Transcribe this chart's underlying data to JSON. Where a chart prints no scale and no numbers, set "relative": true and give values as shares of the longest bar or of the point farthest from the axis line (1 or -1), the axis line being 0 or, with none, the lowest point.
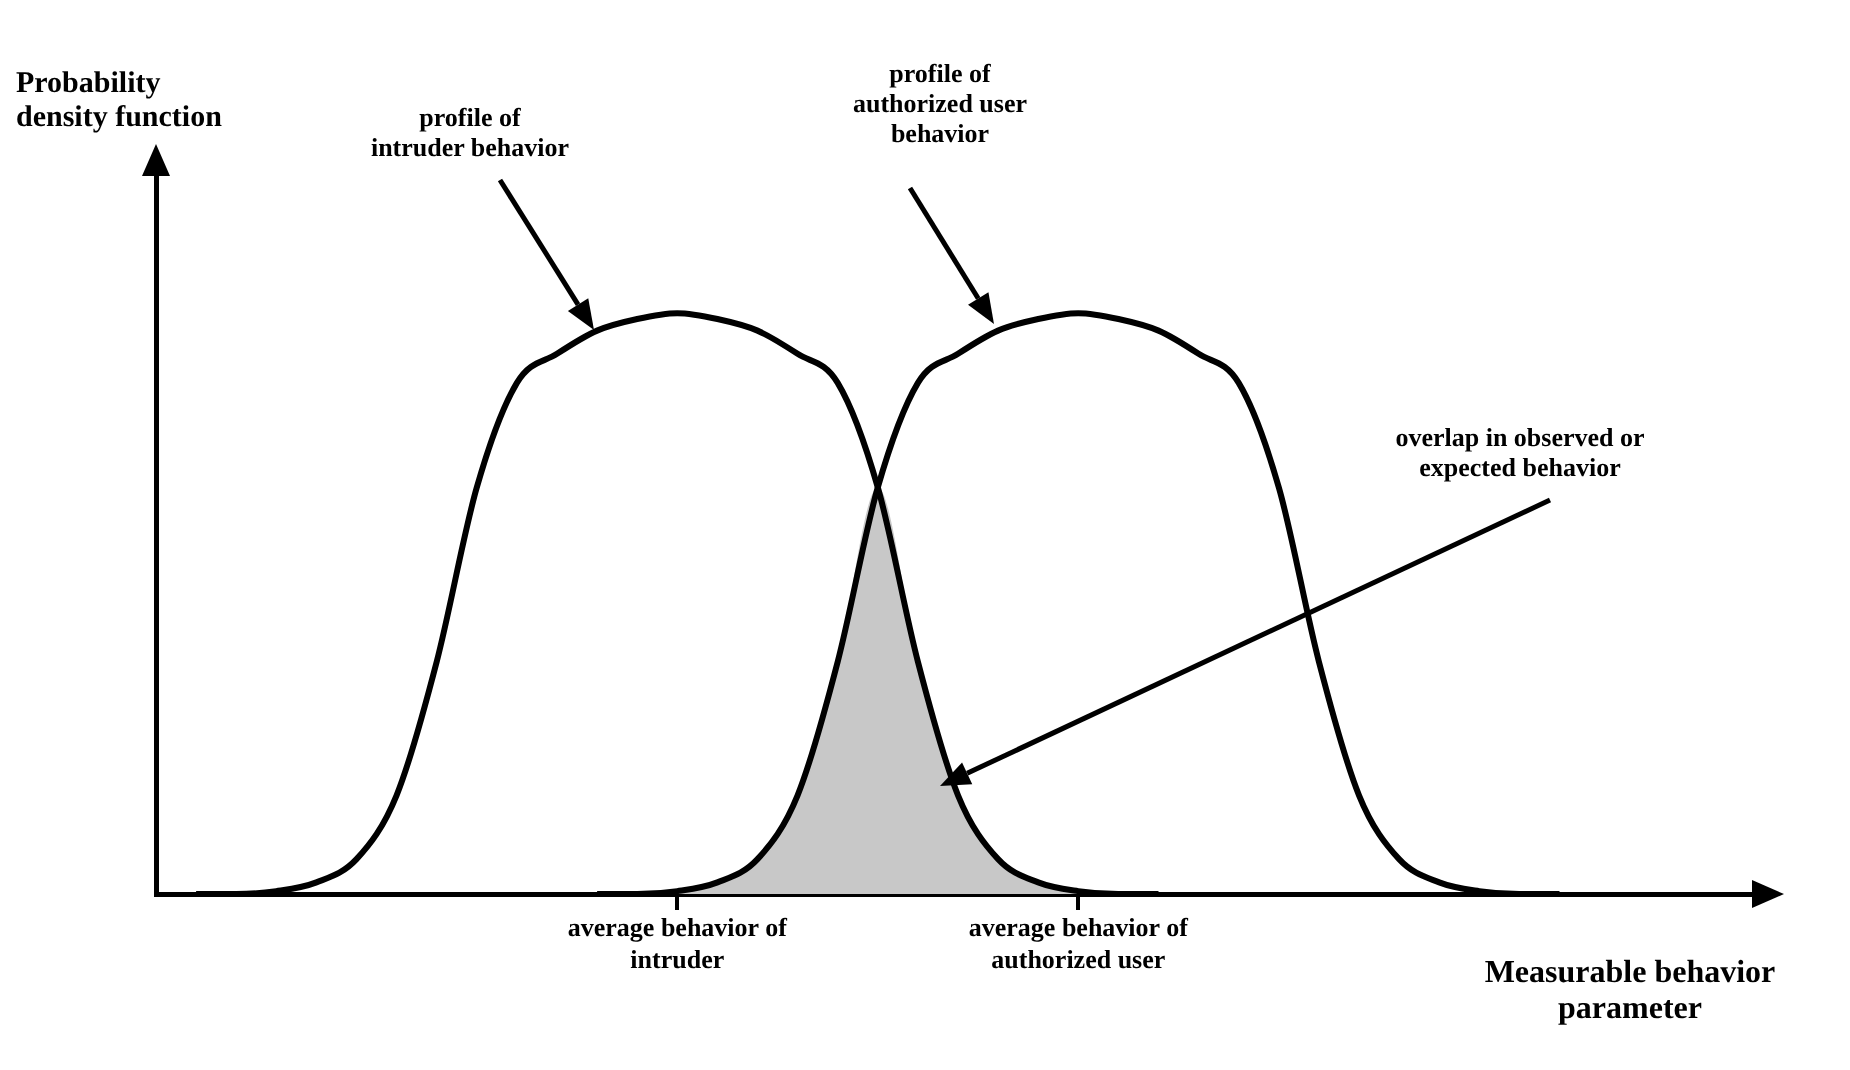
{
  "chart_data": {
    "type": "line",
    "relative": true,
    "xlabel": "Measurable behavior parameter",
    "categories": [
      null,
      null,
      null,
      null,
      null,
      null,
      null,
      null,
      null,
      null,
      null,
      null,
      null,
      "average behavior of intruder",
      null,
      null,
      null,
      null,
      null,
      null,
      null,
      null,
      null,
      "average behavior of authorized user",
      null,
      null,
      null,
      null,
      null,
      null,
      null,
      null,
      null,
      null,
      null,
      null,
      null,
      null,
      null,
      null,
      null
    ],
    "series": [
      {
        "type": "area",
        "color": "#c8c8c8",
        "values": [
          null,
          null,
          null,
          null,
          null,
          null,
          null,
          null,
          null,
          null,
          null,
          null,
          0,
          0.005,
          0.02,
          0.06,
          0.17,
          0.4,
          0.7,
          0.4,
          0.17,
          0.06,
          0.02,
          0.005,
          0,
          null,
          null,
          null,
          null,
          null,
          null,
          null,
          null,
          null,
          null,
          null,
          null,
          null,
          null,
          null,
          null
        ]
      },
      {
        "color": "#000000",
        "values": [
          null,
          0,
          0,
          0.005,
          0.02,
          0.06,
          0.17,
          0.4,
          0.7,
          0.88,
          0.93,
          0.97,
          0.99,
          1,
          0.99,
          0.97,
          0.93,
          0.88,
          0.7,
          0.4,
          0.17,
          0.06,
          0.02,
          0.005,
          0,
          0,
          null,
          null,
          null,
          null,
          null,
          null,
          null,
          null,
          null,
          null,
          null,
          null,
          null,
          null,
          null
        ]
      },
      {
        "color": "#000000",
        "values": [
          null,
          null,
          null,
          null,
          null,
          null,
          null,
          null,
          null,
          null,
          null,
          0,
          0,
          0.005,
          0.02,
          0.06,
          0.17,
          0.4,
          0.7,
          0.88,
          0.93,
          0.97,
          0.99,
          1,
          0.99,
          0.97,
          0.93,
          0.88,
          0.7,
          0.4,
          0.17,
          0.06,
          0.02,
          0.005,
          0,
          0,
          null,
          null,
          null,
          null,
          null
        ]
      }
    ],
    "annotations": [
      "Probability density function",
      "profile of intruder behavior",
      "profile of authorized user behavior",
      "overlap in observed or expected behavior"
    ],
    "marker": "none",
    "line_style": "solid",
    "legend": false,
    "grid": false,
    "tick_labels": "x"
  }
}
